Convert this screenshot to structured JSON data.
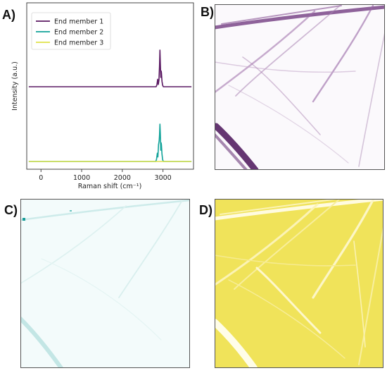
{
  "panels": {
    "a": "A)",
    "b": "B)",
    "c": "C)",
    "d": "D)"
  },
  "colors": {
    "em1": "#5b1a63",
    "em2": "#12a39a",
    "em3": "#dfe24a",
    "map_b_fg": "#4a1459",
    "map_c_fg": "#1a9e9a",
    "map_c_bg": "#f3fbfb",
    "map_d_bg": "#f0e35a",
    "map_d_fg": "#fffde8"
  },
  "chart_data": {
    "type": "line",
    "title": "",
    "xlabel": "Raman shift (cm⁻¹)",
    "ylabel": "Intensity (a.u.)",
    "xlim": [
      -350,
      3750
    ],
    "xticks": [
      "0",
      "1000",
      "2000",
      "3000"
    ],
    "xtick_values": [
      0,
      1000,
      2000,
      3000
    ],
    "legend": "top-left",
    "series": [
      {
        "name": "End member 1",
        "offset": 2,
        "points": [
          [
            -300,
            0
          ],
          [
            2830,
            0
          ],
          [
            2850,
            0.05
          ],
          [
            2870,
            0.2
          ],
          [
            2885,
            0.06
          ],
          [
            2900,
            0.18
          ],
          [
            2915,
            0.55
          ],
          [
            2925,
            0.98
          ],
          [
            2935,
            0.6
          ],
          [
            2945,
            0.25
          ],
          [
            2955,
            0.42
          ],
          [
            2962,
            0.38
          ],
          [
            2975,
            0.15
          ],
          [
            2990,
            0.04
          ],
          [
            3010,
            0
          ],
          [
            3700,
            0
          ]
        ]
      },
      {
        "name": "End member 2",
        "offset": 0,
        "points": [
          [
            -300,
            0
          ],
          [
            2820,
            0
          ],
          [
            2840,
            0.05
          ],
          [
            2860,
            0.22
          ],
          [
            2875,
            0.12
          ],
          [
            2890,
            0.45
          ],
          [
            2905,
            0.55
          ],
          [
            2915,
            0.7
          ],
          [
            2925,
            1.0
          ],
          [
            2935,
            0.72
          ],
          [
            2945,
            0.3
          ],
          [
            2955,
            0.5
          ],
          [
            2962,
            0.45
          ],
          [
            2975,
            0.2
          ],
          [
            2990,
            0.05
          ],
          [
            3010,
            0
          ],
          [
            3700,
            0
          ]
        ]
      },
      {
        "name": "End member 3",
        "offset": 0,
        "points": [
          [
            -300,
            0
          ],
          [
            3700,
            0
          ]
        ]
      }
    ]
  }
}
